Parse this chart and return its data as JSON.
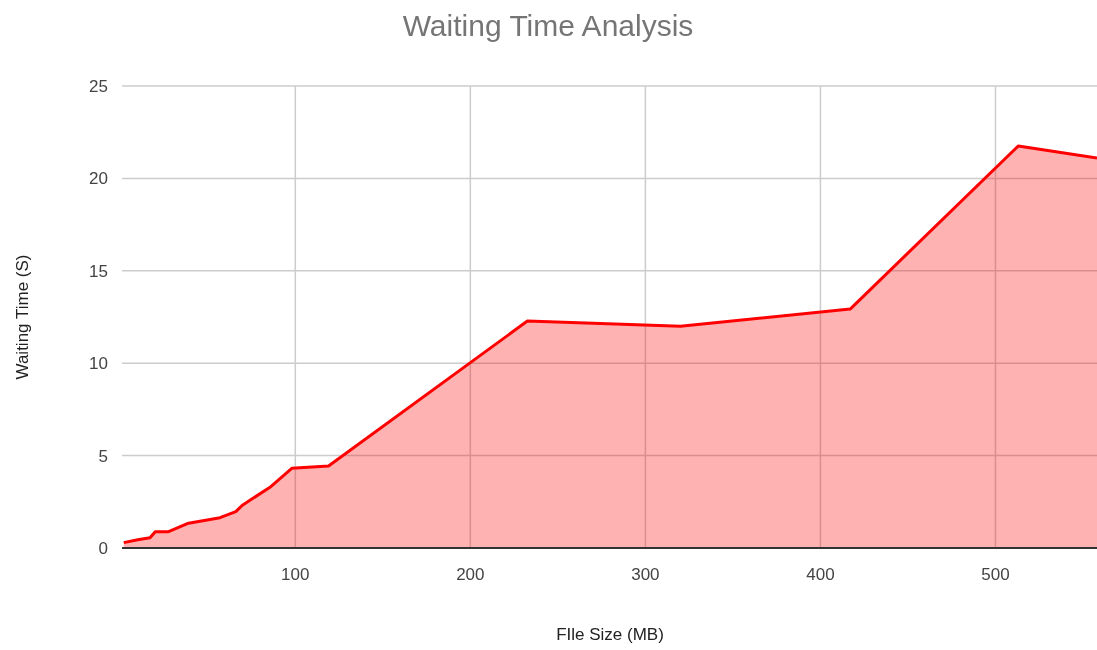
{
  "chart_data": {
    "type": "area",
    "title": "Waiting Time Analysis",
    "xlabel": "FIle Size (MB)",
    "ylabel": "Waiting Time (S)",
    "x": [
      2,
      10,
      17,
      20,
      27.6,
      39,
      57,
      66,
      70,
      86,
      98,
      119,
      232.6,
      320,
      417,
      513,
      558
    ],
    "series": [
      {
        "color": "#ff0000",
        "values": [
          0.29,
          0.45,
          0.55,
          0.88,
          0.88,
          1.34,
          1.64,
          1.97,
          2.33,
          3.32,
          4.31,
          4.44,
          12.28,
          12.0,
          12.93,
          21.75,
          21.1
        ]
      }
    ],
    "xlim": [
      1,
      558
    ],
    "xticks": [
      100,
      200,
      300,
      400,
      500
    ],
    "ylim": [
      0,
      25
    ],
    "yticks": [
      0,
      5,
      10,
      15,
      20,
      25
    ],
    "grid": true
  }
}
